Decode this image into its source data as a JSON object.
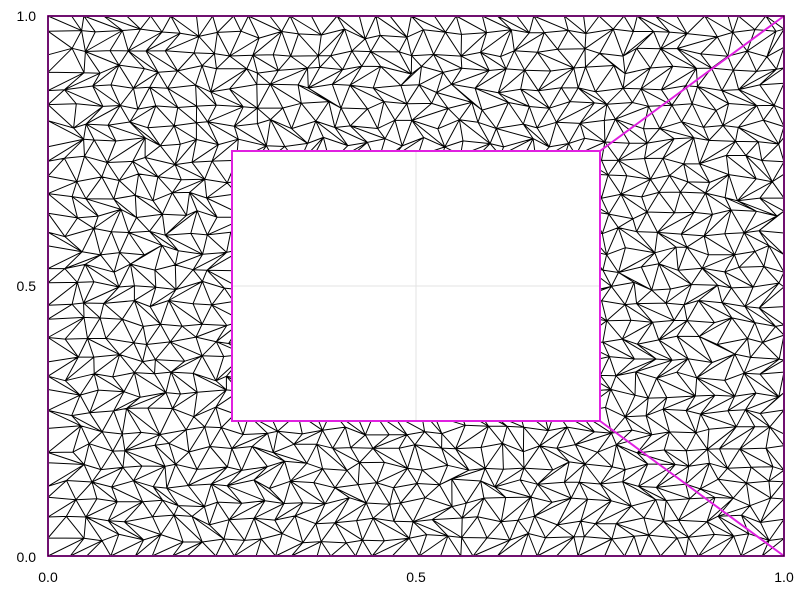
{
  "x_axis": {
    "ticks": [
      "0.0",
      "0.5",
      "1.0"
    ]
  },
  "y_axis": {
    "ticks": [
      "0.0",
      "0.5",
      "1.0"
    ]
  },
  "grid": true,
  "colors": {
    "mesh": "#000000",
    "boundary": "#e020e0",
    "grid": "#e3e3e3",
    "background": "#ffffff"
  },
  "chart_data": {
    "type": "mesh",
    "xlim": [
      0,
      1
    ],
    "ylim": [
      0,
      1
    ],
    "outer_domain": [
      [
        0,
        0
      ],
      [
        1,
        0
      ],
      [
        1,
        1
      ],
      [
        0,
        1
      ]
    ],
    "hole": [
      [
        0.25,
        0.25
      ],
      [
        0.75,
        0.25
      ],
      [
        0.75,
        0.75
      ],
      [
        0.25,
        0.75
      ]
    ],
    "segments": [
      [
        [
          0.75,
          0.75
        ],
        [
          1.0,
          1.0
        ]
      ],
      [
        [
          0.75,
          0.25
        ],
        [
          1.0,
          0.0
        ]
      ]
    ]
  }
}
